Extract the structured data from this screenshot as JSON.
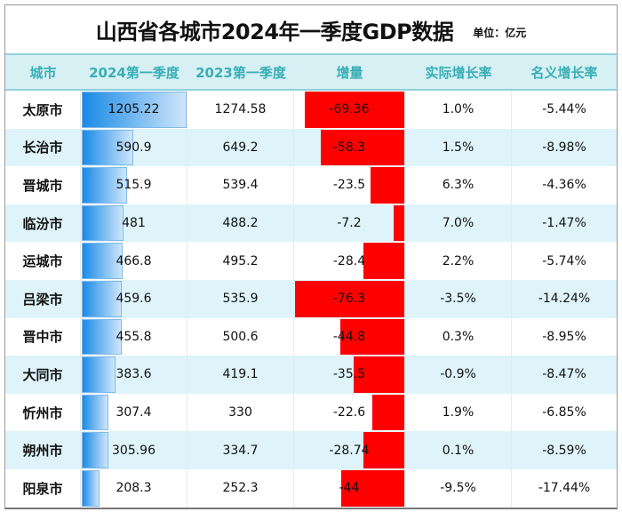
{
  "title": "山西省各城市2024年一季度GDP数据",
  "unit": "单位：亿元",
  "colors": {
    "header_bg": "#d6f0f4",
    "header_text": "#3aaeb6",
    "alt_row": "#def4fa",
    "gdp_bar": "#1a8ae6",
    "increase_bar": "#ff0000"
  },
  "chart_data": {
    "type": "table",
    "title": "山西省各城市2024年一季度GDP数据",
    "columns": [
      "城市",
      "2024第一季度",
      "2023第一季度",
      "增量",
      "实际增长率",
      "名义增长率"
    ],
    "rows": [
      [
        "太原市",
        "1205.22",
        "1274.58",
        "-69.36",
        "1.0%",
        "-5.44%"
      ],
      [
        "长治市",
        "590.9",
        "649.2",
        "-58.3",
        "1.5%",
        "-8.98%"
      ],
      [
        "晋城市",
        "515.9",
        "539.4",
        "-23.5",
        "6.3%",
        "-4.36%"
      ],
      [
        "临汾市",
        "481",
        "488.2",
        "-7.2",
        "7.0%",
        "-1.47%"
      ],
      [
        "运城市",
        "466.8",
        "495.2",
        "-28.4",
        "2.2%",
        "-5.74%"
      ],
      [
        "吕梁市",
        "459.6",
        "535.9",
        "-76.3",
        "-3.5%",
        "-14.24%"
      ],
      [
        "晋中市",
        "455.8",
        "500.6",
        "-44.8",
        "0.3%",
        "-8.95%"
      ],
      [
        "大同市",
        "383.6",
        "419.1",
        "-35.5",
        "-0.9%",
        "-8.47%"
      ],
      [
        "忻州市",
        "307.4",
        "330",
        "-22.6",
        "1.9%",
        "-6.85%"
      ],
      [
        "朔州市",
        "305.96",
        "334.7",
        "-28.74",
        "0.1%",
        "-8.59%"
      ],
      [
        "阳泉市",
        "208.3",
        "252.3",
        "-44",
        "-9.5%",
        "-17.44%"
      ]
    ],
    "data_bars": {
      "2024第一季度": "blue gradient, left-aligned",
      "增量": "red, right-aligned"
    }
  }
}
